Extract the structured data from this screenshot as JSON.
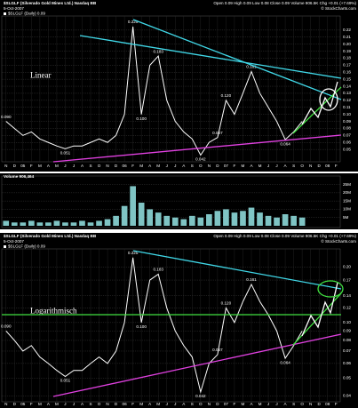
{
  "chart_data": [
    {
      "type": "line",
      "log_scale": false,
      "grid": true,
      "color": "#ffffff",
      "title": "$SLGLF (Silverado Gold Mines Ltd.) Nasdaq BB",
      "subtitle": "5-Oct-2007",
      "info": "Open 0.09 High 0.09 Low 0.08 Close 0.09 Volume 906.5K Chg +0.01 (+7.69%)",
      "credit": "© StockCharts.com",
      "legend_label": "$SLGLF (Daily) 0.09",
      "annotation": "Linear",
      "categories": [
        "N",
        "D",
        "05",
        "F",
        "M",
        "A",
        "M",
        "J",
        "J",
        "A",
        "S",
        "O",
        "N",
        "D",
        "06",
        "F",
        "M",
        "A",
        "M",
        "J",
        "J",
        "A",
        "S",
        "O",
        "N",
        "D",
        "07",
        "F",
        "M",
        "A",
        "M",
        "J",
        "J",
        "A",
        "S",
        "O",
        "N",
        "D",
        "08",
        "F"
      ],
      "values": [
        0.09,
        0.08,
        0.07,
        0.075,
        0.065,
        0.06,
        0.055,
        0.051,
        0.055,
        0.055,
        0.06,
        0.065,
        0.06,
        0.07,
        0.1,
        0.225,
        0.1,
        0.17,
        0.183,
        0.12,
        0.09,
        0.075,
        0.065,
        0.042,
        0.06,
        0.067,
        0.12,
        0.1,
        0.13,
        0.161,
        0.13,
        0.11,
        0.09,
        0.064,
        0.075,
        0.09,
        null,
        null,
        null,
        null
      ],
      "value_labels": [
        "0.090",
        null,
        null,
        null,
        null,
        null,
        null,
        "0.051",
        null,
        null,
        null,
        null,
        null,
        null,
        null,
        "0.225",
        "0.100",
        null,
        "0.183",
        null,
        null,
        null,
        null,
        "0.042",
        null,
        "0.067",
        "0.120",
        null,
        null,
        "0.161",
        null,
        null,
        null,
        "0.064",
        null,
        null,
        null,
        null,
        null,
        null
      ],
      "ylim": [
        0.035,
        0.235
      ],
      "yticks": [
        0.05,
        0.06,
        0.07,
        0.08,
        0.09,
        {
          "value": 0.1,
          "label": "0.10"
        },
        0.11,
        0.12,
        0.13,
        0.14,
        0.15,
        0.16,
        0.17,
        0.18,
        0.19,
        {
          "value": 0.2,
          "label": "0.20"
        },
        0.21,
        0.22
      ]
    },
    {
      "type": "bar",
      "grid": true,
      "color": "#7fc4c4",
      "title": "Volume 906,464",
      "values": [
        3000000,
        2000000,
        2000000,
        3000000,
        2000000,
        2000000,
        3000000,
        2000000,
        2000000,
        3000000,
        2000000,
        3000000,
        4000000,
        6000000,
        12000000,
        24000000,
        14000000,
        10000000,
        8000000,
        6000000,
        5000000,
        4000000,
        6000000,
        5000000,
        7000000,
        9000000,
        10000000,
        8000000,
        9000000,
        11000000,
        8000000,
        6000000,
        5000000,
        7000000,
        6000000,
        5000000,
        null,
        null,
        null,
        null
      ],
      "ylim": [
        0,
        28000000
      ],
      "yticks": [
        {
          "value": 5000000,
          "label": "5M"
        },
        {
          "value": 10000000,
          "label": "10M"
        },
        {
          "value": 15000000,
          "label": "15M"
        },
        {
          "value": 20000000,
          "label": "20M"
        },
        {
          "value": 25000000,
          "label": "25M"
        }
      ]
    },
    {
      "type": "line",
      "log_scale": true,
      "grid": true,
      "color": "#ffffff",
      "title": "$SLGLF (Silverado Gold Mines Ltd.) Nasdaq BB",
      "subtitle": "5-Oct-2007",
      "info": "Open 0.09 High 0.09 Low 0.08 Close 0.09 Volume 906.5K Chg +0.01 (+7.69%)",
      "credit": "© StockCharts.com",
      "legend_label": "$SLGLF (Daily) 0.09",
      "annotation": "Logarithmisch",
      "categories": [
        "N",
        "D",
        "05",
        "F",
        "M",
        "A",
        "M",
        "J",
        "J",
        "A",
        "S",
        "O",
        "N",
        "D",
        "06",
        "F",
        "M",
        "A",
        "M",
        "J",
        "J",
        "A",
        "S",
        "O",
        "N",
        "D",
        "07",
        "F",
        "M",
        "A",
        "M",
        "J",
        "J",
        "A",
        "S",
        "O",
        "N",
        "D",
        "08",
        "F"
      ],
      "values": [
        0.09,
        0.08,
        0.07,
        0.075,
        0.065,
        0.06,
        0.055,
        0.051,
        0.055,
        0.055,
        0.06,
        0.065,
        0.06,
        0.07,
        0.1,
        0.225,
        0.1,
        0.17,
        0.183,
        0.12,
        0.09,
        0.075,
        0.065,
        0.042,
        0.06,
        0.067,
        0.12,
        0.1,
        0.13,
        0.161,
        0.13,
        0.11,
        0.09,
        0.064,
        0.075,
        0.09,
        null,
        null,
        null,
        null
      ],
      "value_labels": [
        "0.090",
        null,
        null,
        null,
        null,
        null,
        null,
        "0.051",
        null,
        null,
        null,
        null,
        null,
        null,
        null,
        "0.225",
        "0.100",
        null,
        "0.183",
        null,
        null,
        null,
        null,
        "0.042",
        null,
        "0.067",
        "0.120",
        null,
        null,
        "0.161",
        null,
        null,
        null,
        "0.064",
        null,
        null,
        null,
        null,
        null,
        null
      ],
      "ylim": [
        0.038,
        0.24
      ],
      "yticks": [
        0.04,
        0.05,
        0.06,
        0.07,
        0.08,
        0.09,
        {
          "value": 0.1,
          "label": "0.10"
        },
        0.12,
        0.14,
        0.17,
        {
          "value": 0.2,
          "label": "0.20"
        }
      ]
    }
  ]
}
